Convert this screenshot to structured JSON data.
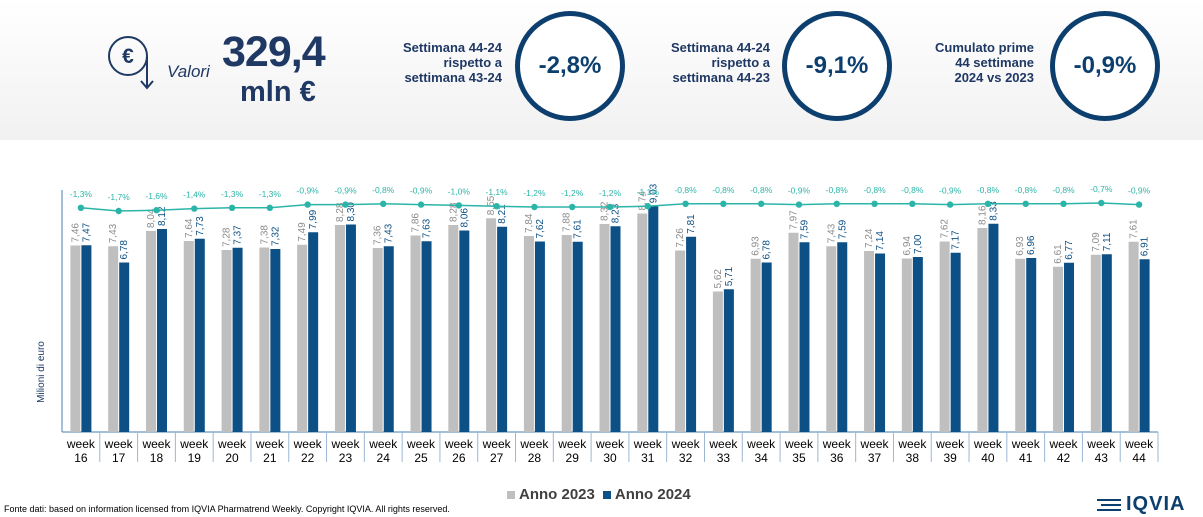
{
  "header": {
    "valori_label": "Valori",
    "valori_value": "329,4",
    "valori_unit": "mln €",
    "kpis": [
      {
        "text": [
          "Settimana 44-24",
          "rispetto a",
          "settimana 43-24"
        ],
        "value": "-2,8%"
      },
      {
        "text": [
          "Settimana 44-24",
          "rispetto a",
          "settimana 44-23"
        ],
        "value": "-9,1%"
      },
      {
        "text": [
          "Cumulato prime",
          "44 settimane",
          "2024 vs 2023"
        ],
        "value": "-0,9%"
      }
    ]
  },
  "colors": {
    "anno_2023": "#bfbfbf",
    "anno_2024": "#0d5085",
    "line": "#2bb5a8",
    "navy": "#1f3864",
    "axis_text": "#1f3864"
  },
  "chart_data": {
    "type": "bar",
    "ylabel": "Milioni di euro",
    "categories": [
      "week 16",
      "week 17",
      "week 18",
      "week 19",
      "week 20",
      "week 21",
      "week 22",
      "week 23",
      "week 24",
      "week 25",
      "week 26",
      "week 27",
      "week 28",
      "week 29",
      "week 30",
      "week 31",
      "week 32",
      "week 33",
      "week 34",
      "week 35",
      "week 36",
      "week 37",
      "week 38",
      "week 39",
      "week 40",
      "week 41",
      "week 42",
      "week 43",
      "week 44"
    ],
    "series": [
      {
        "name": "Anno 2023",
        "values": [
          7.46,
          7.43,
          8.04,
          7.64,
          7.28,
          7.38,
          7.49,
          8.28,
          7.36,
          7.86,
          8.28,
          8.55,
          7.84,
          7.88,
          8.32,
          8.74,
          7.26,
          5.62,
          6.93,
          7.97,
          7.43,
          7.24,
          6.94,
          7.62,
          8.16,
          6.93,
          6.61,
          7.09,
          7.61
        ]
      },
      {
        "name": "Anno 2024",
        "values": [
          7.47,
          6.78,
          8.12,
          7.73,
          7.37,
          7.32,
          7.99,
          8.3,
          7.43,
          7.63,
          8.06,
          8.21,
          7.62,
          7.61,
          8.23,
          9.03,
          7.81,
          5.71,
          6.78,
          7.59,
          7.59,
          7.14,
          7.0,
          7.17,
          8.33,
          6.96,
          6.77,
          7.11,
          6.91
        ]
      }
    ],
    "bar_labels_2023": [
      "7,46",
      "7,43",
      "8,04",
      "7,64",
      "7,28",
      "7,38",
      "7,49",
      "8,28",
      "7,36",
      "7,86",
      "8,28",
      "8,55",
      "7,84",
      "7,88",
      "8,32",
      "8,74",
      "7,26",
      "5,62",
      "6,93",
      "7,97",
      "7,43",
      "7,24",
      "6,94",
      "7,62",
      "8,16",
      "6,93",
      "6,61",
      "7,09",
      "7,61"
    ],
    "bar_labels_2024": [
      "7,47",
      "6,78",
      "8,12",
      "7,73",
      "7,37",
      "7,32",
      "7,99",
      "8,30",
      "7,43",
      "7,63",
      "8,06",
      "8,21",
      "7,62",
      "7,61",
      "8,23",
      "9,03",
      "7,81",
      "5,71",
      "6,78",
      "7,59",
      "7,59",
      "7,14",
      "7,00",
      "7,17",
      "8,33",
      "6,96",
      "6,77",
      "7,11",
      "6,91"
    ],
    "line_series": {
      "values": [
        -1.3,
        -1.7,
        -1.6,
        -1.4,
        -1.3,
        -1.3,
        -0.9,
        -0.9,
        -0.8,
        -0.9,
        -1.0,
        -1.1,
        -1.2,
        -1.2,
        -1.2,
        -1.1,
        -0.8,
        -0.8,
        -0.8,
        -0.9,
        -0.8,
        -0.8,
        -0.8,
        -0.9,
        -0.8,
        -0.8,
        -0.8,
        -0.7,
        -0.9
      ],
      "labels": [
        "-1,3%",
        "-1,7%",
        "-1,6%",
        "-1,4%",
        "-1,3%",
        "-1,3%",
        "-0,9%",
        "-0,9%",
        "-0,8%",
        "-0,9%",
        "-1,0%",
        "-1,1%",
        "-1,2%",
        "-1,2%",
        "-1,2%",
        "-1,1%",
        "-0,8%",
        "-0,8%",
        "-0,8%",
        "-0,9%",
        "-0,8%",
        "-0,8%",
        "-0,8%",
        "-0,9%",
        "-0,8%",
        "-0,8%",
        "-0,8%",
        "-0,7%",
        "-0,9%"
      ]
    },
    "ylim": [
      0,
      10
    ],
    "legend_position": "bottom-center"
  },
  "legend": [
    {
      "label": "Anno 2023"
    },
    {
      "label": "Anno 2024"
    }
  ],
  "footer": {
    "source": "Fonte dati: based on information licensed from IQVIA Pharmatrend Weekly. Copyright IQVIA. All rights reserved.",
    "logo_text": "IQVIA"
  }
}
